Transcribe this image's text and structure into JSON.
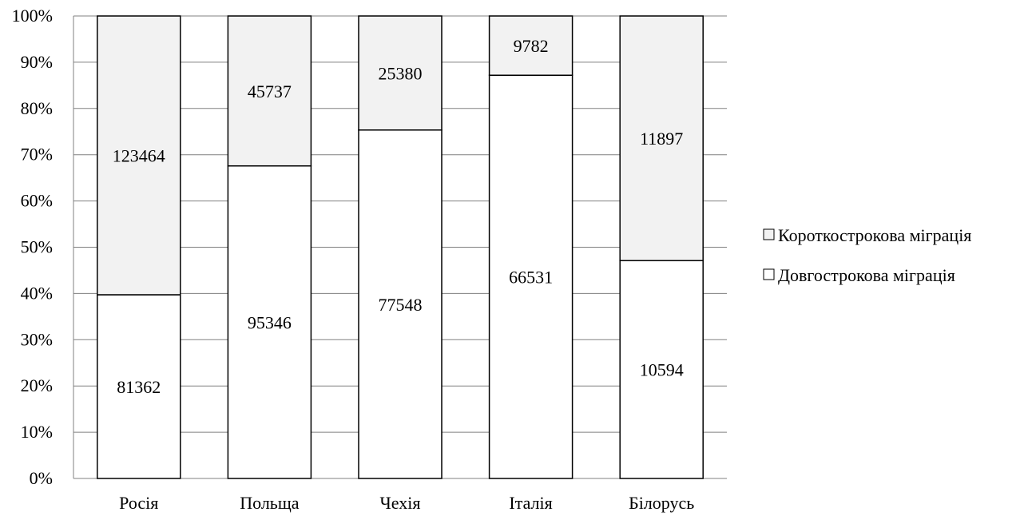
{
  "chart_data": {
    "type": "bar",
    "stacked": "percent",
    "categories": [
      "Росія",
      "Польща",
      "Чехія",
      "Італія",
      "Білорусь"
    ],
    "series": [
      {
        "name": "Довгострокова міграція",
        "values": [
          81362,
          95346,
          77548,
          66531,
          10594
        ],
        "color": "#ffffff"
      },
      {
        "name": "Короткострокова міграція",
        "values": [
          123464,
          45737,
          25380,
          9782,
          11897
        ],
        "color": "#f2f2f2"
      }
    ],
    "y_ticks": [
      "0%",
      "10%",
      "20%",
      "30%",
      "40%",
      "50%",
      "60%",
      "70%",
      "80%",
      "90%",
      "100%"
    ],
    "ylim": [
      0,
      100
    ],
    "grid": true,
    "legend_position": "right",
    "legend_order": [
      "Короткострокова міграція",
      "Довгострокова міграція"
    ],
    "colors": {
      "border": "#000000",
      "grid": "#808080"
    }
  }
}
